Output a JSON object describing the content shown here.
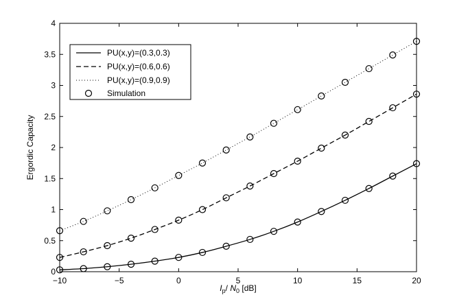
{
  "chart_data": {
    "type": "line",
    "xlabel_italic": "I",
    "xlabel_sub1": "p",
    "xlabel_mid": "/",
    "xlabel_italic2": "N",
    "xlabel_sub2": "0",
    "xlabel_unit": "[dB]",
    "ylabel": "Ergordic Capacity",
    "xlim": [
      -10,
      20
    ],
    "ylim": [
      0,
      4
    ],
    "xticks": [
      -10,
      -5,
      0,
      5,
      10,
      15,
      20
    ],
    "xtick_labels": [
      "−10",
      "−5",
      "0",
      "5",
      "10",
      "15",
      "20"
    ],
    "yticks": [
      0,
      0.5,
      1,
      1.5,
      2,
      2.5,
      3,
      3.5,
      4
    ],
    "ytick_labels": [
      "0",
      "0.5",
      "1",
      "1.5",
      "2",
      "2.5",
      "3",
      "3.5",
      "4"
    ],
    "grid": false,
    "legend_position": "top-left",
    "series": [
      {
        "name": "PU(x,y)=(0.3,0.3)",
        "style": "solid",
        "x": [
          -10,
          -8,
          -6,
          -4,
          -2,
          0,
          2,
          4,
          6,
          8,
          10,
          12,
          14,
          16,
          18,
          20
        ],
        "y": [
          0.03,
          0.05,
          0.08,
          0.12,
          0.17,
          0.23,
          0.31,
          0.41,
          0.52,
          0.65,
          0.8,
          0.97,
          1.15,
          1.34,
          1.54,
          1.74
        ]
      },
      {
        "name": "PU(x,y)=(0.6,0.6)",
        "style": "dashed",
        "x": [
          -10,
          -8,
          -6,
          -4,
          -2,
          0,
          2,
          4,
          6,
          8,
          10,
          12,
          14,
          16,
          18,
          20
        ],
        "y": [
          0.23,
          0.32,
          0.42,
          0.54,
          0.68,
          0.83,
          1.0,
          1.19,
          1.38,
          1.58,
          1.78,
          1.99,
          2.2,
          2.42,
          2.64,
          2.86
        ]
      },
      {
        "name": "PU(x,y)=(0.9,0.9)",
        "style": "dotted",
        "x": [
          -10,
          -8,
          -6,
          -4,
          -2,
          0,
          2,
          4,
          6,
          8,
          10,
          12,
          14,
          16,
          18,
          20
        ],
        "y": [
          0.66,
          0.81,
          0.98,
          1.16,
          1.35,
          1.55,
          1.75,
          1.96,
          2.17,
          2.39,
          2.61,
          2.83,
          3.05,
          3.27,
          3.49,
          3.71
        ]
      }
    ],
    "simulation": {
      "name": "Simulation",
      "marker": "circle"
    }
  }
}
